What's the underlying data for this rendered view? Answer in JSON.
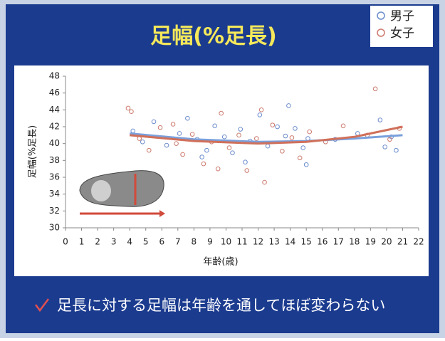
{
  "chart_data": {
    "type": "scatter",
    "title": "足幅(%足長)",
    "x_label": "年齢(歳)",
    "y_label": "足幅(%足長)",
    "note": "足長に対する足幅は年齢を通してほぼ変わらない",
    "xlim": [
      0,
      22
    ],
    "xticks": [
      0,
      1,
      2,
      3,
      4,
      5,
      6,
      7,
      8,
      9,
      10,
      11,
      12,
      13,
      14,
      15,
      16,
      17,
      18,
      19,
      20,
      21,
      22
    ],
    "ylim": [
      30,
      48
    ],
    "yticks": [
      30,
      32,
      34,
      36,
      38,
      40,
      42,
      44,
      46,
      48
    ],
    "series": [
      {
        "name": "男子",
        "color": "#6b8ccc",
        "trend_color": "#7aa0dc",
        "x": [
          4.2,
          4.8,
          5.5,
          6.3,
          7.1,
          7.6,
          8.2,
          8.8,
          9.3,
          9.9,
          10.4,
          10.9,
          11.5,
          12.1,
          12.6,
          13.2,
          13.7,
          14.3,
          14.8,
          15.1,
          15.0,
          16.8,
          18.2,
          19.6,
          19.9,
          20.3,
          20.6,
          13.9,
          11.2,
          8.5
        ],
        "y": [
          41.5,
          40.2,
          42.6,
          39.8,
          41.2,
          43.0,
          40.5,
          39.2,
          42.1,
          40.8,
          38.9,
          41.7,
          40.3,
          43.4,
          39.7,
          42.0,
          40.9,
          41.8,
          39.5,
          40.6,
          37.5,
          40.5,
          41.2,
          42.8,
          39.6,
          40.8,
          39.2,
          44.5,
          37.8,
          38.4
        ],
        "trend_x": [
          4,
          8,
          12,
          15,
          18,
          21
        ],
        "trend_y": [
          41.2,
          40.5,
          40.2,
          40.3,
          40.6,
          41.0
        ]
      },
      {
        "name": "女子",
        "color": "#cc7a6e",
        "trend_color": "#d0705a",
        "x": [
          4.1,
          4.6,
          5.2,
          5.9,
          6.7,
          7.3,
          7.9,
          8.6,
          9.1,
          9.7,
          10.2,
          10.8,
          11.3,
          11.9,
          12.4,
          12.9,
          13.5,
          14.1,
          14.6,
          15.2,
          16.2,
          17.3,
          18.8,
          19.3,
          20.2,
          20.8,
          12.2,
          9.5,
          6.9,
          3.9
        ],
        "y": [
          43.8,
          40.6,
          39.2,
          41.9,
          42.3,
          38.7,
          41.1,
          37.6,
          40.2,
          43.6,
          39.5,
          41.0,
          36.8,
          40.6,
          35.4,
          42.2,
          39.1,
          40.7,
          38.3,
          41.4,
          40.2,
          42.1,
          41.0,
          46.5,
          40.5,
          41.8,
          44.0,
          37.0,
          40.0,
          44.2
        ],
        "trend_x": [
          4,
          8,
          12,
          15,
          18,
          21
        ],
        "trend_y": [
          41.0,
          40.3,
          40.0,
          40.2,
          40.8,
          42.0
        ]
      }
    ]
  }
}
